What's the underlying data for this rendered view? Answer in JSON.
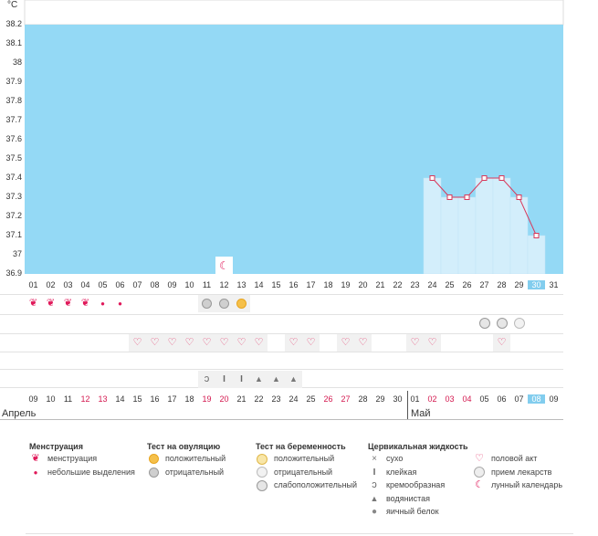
{
  "unit_label": "°C",
  "colors": {
    "plot_bg": "#94d9f5",
    "bar_fill": "#d3eefb",
    "line": "#d8385a",
    "today": "#82cdee",
    "heart": "#e33a6c",
    "drop": "#e0195a",
    "grid": "#e2e2e2"
  },
  "chart_data": {
    "type": "line",
    "title": "",
    "xlabel": "",
    "ylabel": "°C",
    "ylim": [
      36.9,
      38.2
    ],
    "y_ticks": [
      "38.2",
      "38.1",
      "38",
      "37.9",
      "37.8",
      "37.7",
      "37.6",
      "37.5",
      "37.4",
      "37.3",
      "37.2",
      "37.1",
      "37",
      "36.9"
    ],
    "categories": [
      "01",
      "02",
      "03",
      "04",
      "05",
      "06",
      "07",
      "08",
      "09",
      "10",
      "11",
      "12",
      "13",
      "14",
      "15",
      "16",
      "17",
      "18",
      "19",
      "20",
      "21",
      "22",
      "23",
      "24",
      "25",
      "26",
      "27",
      "28",
      "29",
      "30",
      "31"
    ],
    "series": [
      {
        "name": "temperature",
        "x": [
          "24",
          "25",
          "26",
          "27",
          "28",
          "29",
          "30"
        ],
        "values": [
          37.4,
          37.3,
          37.3,
          37.4,
          37.4,
          37.3,
          37.1
        ]
      }
    ],
    "moon_day": "12",
    "today": "30"
  },
  "rows": {
    "menstruation": [
      {
        "day": "01",
        "icon": "menstruation-icon"
      },
      {
        "day": "02",
        "icon": "menstruation-icon"
      },
      {
        "day": "03",
        "icon": "menstruation-icon"
      },
      {
        "day": "04",
        "icon": "menstruation-icon"
      },
      {
        "day": "05",
        "icon": "light-spotting-icon"
      },
      {
        "day": "06",
        "icon": "light-spotting-icon"
      }
    ],
    "ovulation_test": [
      {
        "day": "11",
        "icon": "ovulation-negative-icon"
      },
      {
        "day": "12",
        "icon": "ovulation-negative-icon"
      },
      {
        "day": "13",
        "icon": "ovulation-positive-icon"
      }
    ],
    "pregnancy_test": [
      {
        "day": "27",
        "icon": "pregnancy-weak-icon"
      },
      {
        "day": "28",
        "icon": "pregnancy-weak-icon"
      },
      {
        "day": "29",
        "icon": "pregnancy-negative-icon"
      }
    ],
    "intercourse": [
      "07",
      "08",
      "09",
      "10",
      "11",
      "12",
      "13",
      "14",
      "16",
      "17",
      "19",
      "20",
      "23",
      "24",
      "28"
    ],
    "cervical_fluid": [
      {
        "day": "11",
        "icon": "creamy-icon"
      },
      {
        "day": "12",
        "icon": "sticky-icon"
      },
      {
        "day": "13",
        "icon": "sticky-icon"
      },
      {
        "day": "14",
        "icon": "watery-icon"
      },
      {
        "day": "15",
        "icon": "watery-icon"
      },
      {
        "day": "16",
        "icon": "watery-icon"
      }
    ]
  },
  "cycle_days": [
    {
      "label": "09",
      "red": false
    },
    {
      "label": "10",
      "red": false
    },
    {
      "label": "11",
      "red": false
    },
    {
      "label": "12",
      "red": true
    },
    {
      "label": "13",
      "red": true
    },
    {
      "label": "14",
      "red": false
    },
    {
      "label": "15",
      "red": false
    },
    {
      "label": "16",
      "red": false
    },
    {
      "label": "17",
      "red": false
    },
    {
      "label": "18",
      "red": false
    },
    {
      "label": "19",
      "red": true
    },
    {
      "label": "20",
      "red": true
    },
    {
      "label": "21",
      "red": false
    },
    {
      "label": "22",
      "red": false
    },
    {
      "label": "23",
      "red": false
    },
    {
      "label": "24",
      "red": false
    },
    {
      "label": "25",
      "red": false
    },
    {
      "label": "26",
      "red": true
    },
    {
      "label": "27",
      "red": true
    },
    {
      "label": "28",
      "red": false
    },
    {
      "label": "29",
      "red": false
    },
    {
      "label": "30",
      "red": false
    },
    {
      "label": "01",
      "red": false
    },
    {
      "label": "02",
      "red": true
    },
    {
      "label": "03",
      "red": true
    },
    {
      "label": "04",
      "red": true
    },
    {
      "label": "05",
      "red": false
    },
    {
      "label": "06",
      "red": false
    },
    {
      "label": "07",
      "red": false
    },
    {
      "label": "08",
      "red": false,
      "today": true
    },
    {
      "label": "09",
      "red": false
    }
  ],
  "months": {
    "april": "Апрель",
    "may": "Май"
  },
  "legend": {
    "menstruation": {
      "title": "Менструация",
      "items": [
        {
          "icon": "menstruation-icon",
          "label": "менструация"
        },
        {
          "icon": "light-spotting-icon",
          "label": "небольшие выделения"
        }
      ]
    },
    "ovulation": {
      "title": "Тест на овуляцию",
      "items": [
        {
          "icon": "ovulation-positive-icon",
          "label": "положительный"
        },
        {
          "icon": "ovulation-negative-icon",
          "label": "отрицательный"
        }
      ]
    },
    "pregnancy": {
      "title": "Тест на беременность",
      "items": [
        {
          "icon": "pregnancy-positive-icon",
          "label": "положительный"
        },
        {
          "icon": "pregnancy-negative-icon",
          "label": "отрицательный"
        },
        {
          "icon": "pregnancy-weak-icon",
          "label": "слабоположительный"
        }
      ]
    },
    "cervical": {
      "title": "Цервикальная жидкость",
      "items": [
        {
          "icon": "dry-icon",
          "label": "сухо"
        },
        {
          "icon": "sticky-icon",
          "label": "клейкая"
        },
        {
          "icon": "creamy-icon",
          "label": "кремообразная"
        },
        {
          "icon": "watery-icon",
          "label": "водянистая"
        },
        {
          "icon": "egg-white-icon",
          "label": "яичный белок"
        }
      ]
    },
    "other": {
      "items": [
        {
          "icon": "heart-icon",
          "label": "половой акт"
        },
        {
          "icon": "pill-icon",
          "label": "прием лекарств"
        },
        {
          "icon": "moon-icon",
          "label": "лунный календарь"
        }
      ]
    }
  }
}
